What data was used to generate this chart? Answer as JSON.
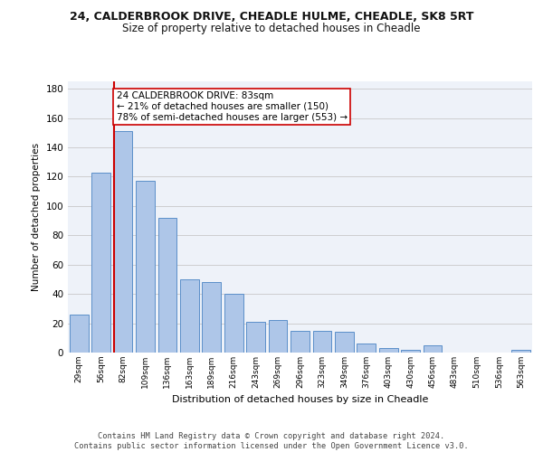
{
  "title1": "24, CALDERBROOK DRIVE, CHEADLE HULME, CHEADLE, SK8 5RT",
  "title2": "Size of property relative to detached houses in Cheadle",
  "xlabel": "Distribution of detached houses by size in Cheadle",
  "ylabel": "Number of detached properties",
  "categories": [
    "29sqm",
    "56sqm",
    "82sqm",
    "109sqm",
    "136sqm",
    "163sqm",
    "189sqm",
    "216sqm",
    "243sqm",
    "269sqm",
    "296sqm",
    "323sqm",
    "349sqm",
    "376sqm",
    "403sqm",
    "430sqm",
    "456sqm",
    "483sqm",
    "510sqm",
    "536sqm",
    "563sqm"
  ],
  "values": [
    26,
    123,
    151,
    117,
    92,
    50,
    48,
    40,
    21,
    22,
    15,
    15,
    14,
    6,
    3,
    2,
    5,
    0,
    0,
    0,
    2
  ],
  "bar_color": "#aec6e8",
  "bar_edge_color": "#5b8fc9",
  "property_bar_index": 2,
  "vline_color": "#cc0000",
  "annotation_text": "24 CALDERBROOK DRIVE: 83sqm\n← 21% of detached houses are smaller (150)\n78% of semi-detached houses are larger (553) →",
  "annotation_box_color": "#ffffff",
  "annotation_box_edge_color": "#cc0000",
  "ylim": [
    0,
    185
  ],
  "yticks": [
    0,
    20,
    40,
    60,
    80,
    100,
    120,
    140,
    160,
    180
  ],
  "footer": "Contains HM Land Registry data © Crown copyright and database right 2024.\nContains public sector information licensed under the Open Government Licence v3.0.",
  "bg_color": "#eef2f9",
  "grid_color": "#c8c8c8",
  "title1_fontsize": 9,
  "title2_fontsize": 8.5,
  "annotation_fontsize": 7.5,
  "xlabel_fontsize": 8,
  "ylabel_fontsize": 7.5,
  "xtick_fontsize": 6.5,
  "ytick_fontsize": 7.5
}
